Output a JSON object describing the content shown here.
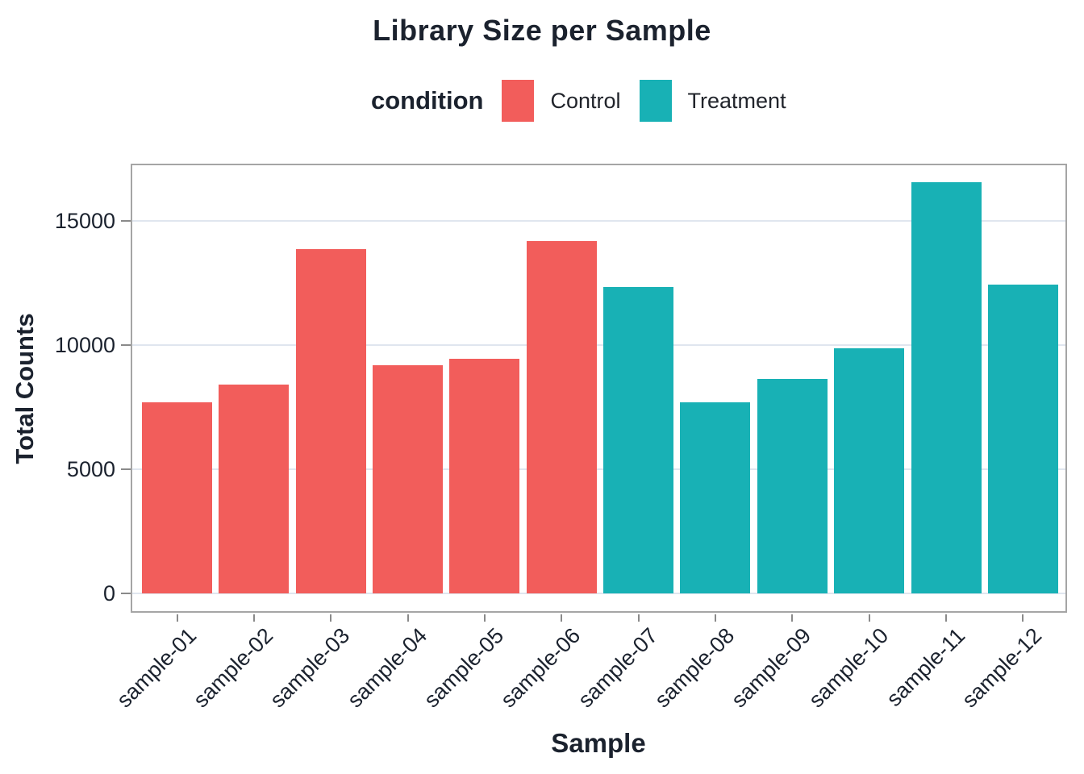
{
  "chart_data": {
    "type": "bar",
    "title": "Library Size per Sample",
    "xlabel": "Sample",
    "ylabel": "Total Counts",
    "categories": [
      "sample-01",
      "sample-02",
      "sample-03",
      "sample-04",
      "sample-05",
      "sample-06",
      "sample-07",
      "sample-08",
      "sample-09",
      "sample-10",
      "sample-11",
      "sample-12"
    ],
    "values": [
      7700,
      8400,
      13850,
      9200,
      9460,
      14200,
      12350,
      7700,
      8630,
      9860,
      16570,
      12440
    ],
    "conditions": [
      "Control",
      "Control",
      "Control",
      "Control",
      "Control",
      "Control",
      "Treatment",
      "Treatment",
      "Treatment",
      "Treatment",
      "Treatment",
      "Treatment"
    ],
    "legend": {
      "title": "condition",
      "position": "top",
      "entries": [
        {
          "label": "Control",
          "color": "#F25D5B"
        },
        {
          "label": "Treatment",
          "color": "#18B1B5"
        }
      ]
    },
    "yticks": [
      0,
      5000,
      10000,
      15000
    ],
    "ylim": [
      0,
      17300
    ],
    "grid": "horizontal-major"
  }
}
